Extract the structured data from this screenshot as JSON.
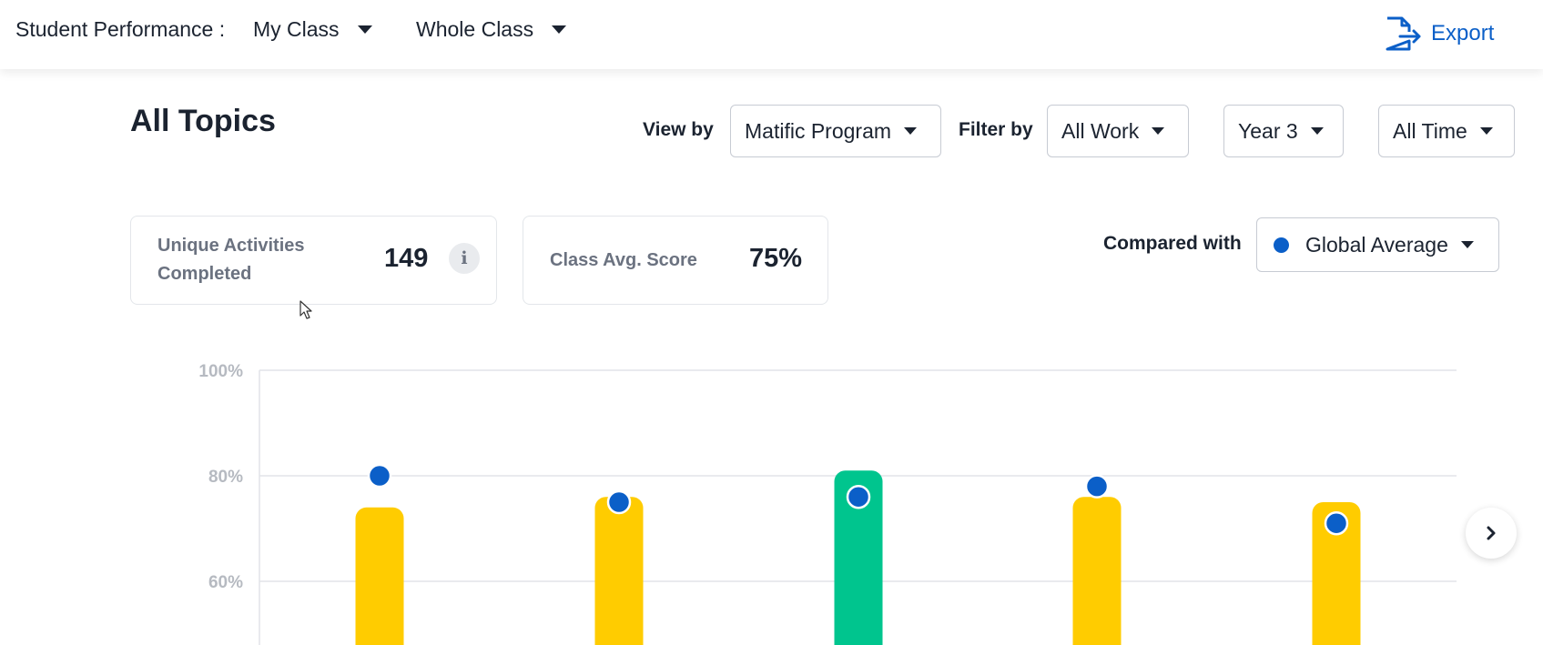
{
  "header": {
    "label": "Student Performance :",
    "class_selector": "My Class",
    "group_selector": "Whole Class",
    "export_label": "Export"
  },
  "page": {
    "title": "All Topics"
  },
  "filters": {
    "view_by_label": "View by",
    "view_by_value": "Matific Program",
    "filter_by_label": "Filter by",
    "work_value": "All Work",
    "year_value": "Year 3",
    "time_value": "All Time"
  },
  "stats": {
    "unique_activities_label_line1": "Unique Activities",
    "unique_activities_label_line2": "Completed",
    "unique_activities_value": "149",
    "class_avg_label": "Class Avg. Score",
    "class_avg_value": "75%"
  },
  "comparison": {
    "label": "Compared with",
    "value": "Global Average"
  },
  "colors": {
    "accent": "#0b5fc8",
    "bar_yellow": "#ffcc00",
    "bar_green": "#00c58e",
    "grid": "#e2e4e8",
    "tick_text": "#b6bac1"
  },
  "icons": {
    "export": "export-file-icon",
    "info": "info-icon",
    "next": "chevron-right-icon"
  },
  "chart_data": {
    "type": "bar",
    "ylim": [
      50,
      100
    ],
    "yticks": [
      "100%",
      "80%",
      "60%"
    ],
    "grid": true,
    "series": [
      {
        "values": [
          74,
          76,
          81,
          76,
          75
        ],
        "colors": [
          "#ffcc00",
          "#ffcc00",
          "#00c58e",
          "#ffcc00",
          "#ffcc00"
        ]
      },
      {
        "values": [
          80,
          75,
          76,
          78,
          71
        ]
      }
    ]
  }
}
